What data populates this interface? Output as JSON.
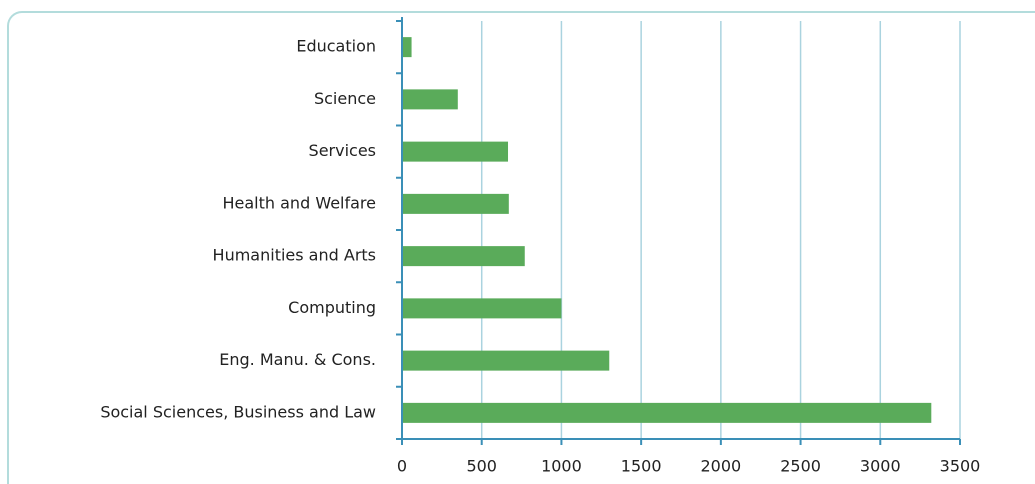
{
  "chart_data": {
    "type": "bar",
    "categories": [
      "Education",
      "Science",
      "Services",
      "Health and Welfare",
      "Humanities and Arts",
      "Computing",
      "Eng. Manu. & Cons.",
      "Social Sciences, Business and Law"
    ],
    "values": [
      60,
      350,
      665,
      670,
      770,
      1000,
      1300,
      3320
    ],
    "color": "#5aab5a",
    "xlim": [
      0,
      3500
    ],
    "xticks": [
      0,
      500,
      1000,
      1500,
      2000,
      2500,
      3000,
      3500
    ],
    "grid": true
  }
}
